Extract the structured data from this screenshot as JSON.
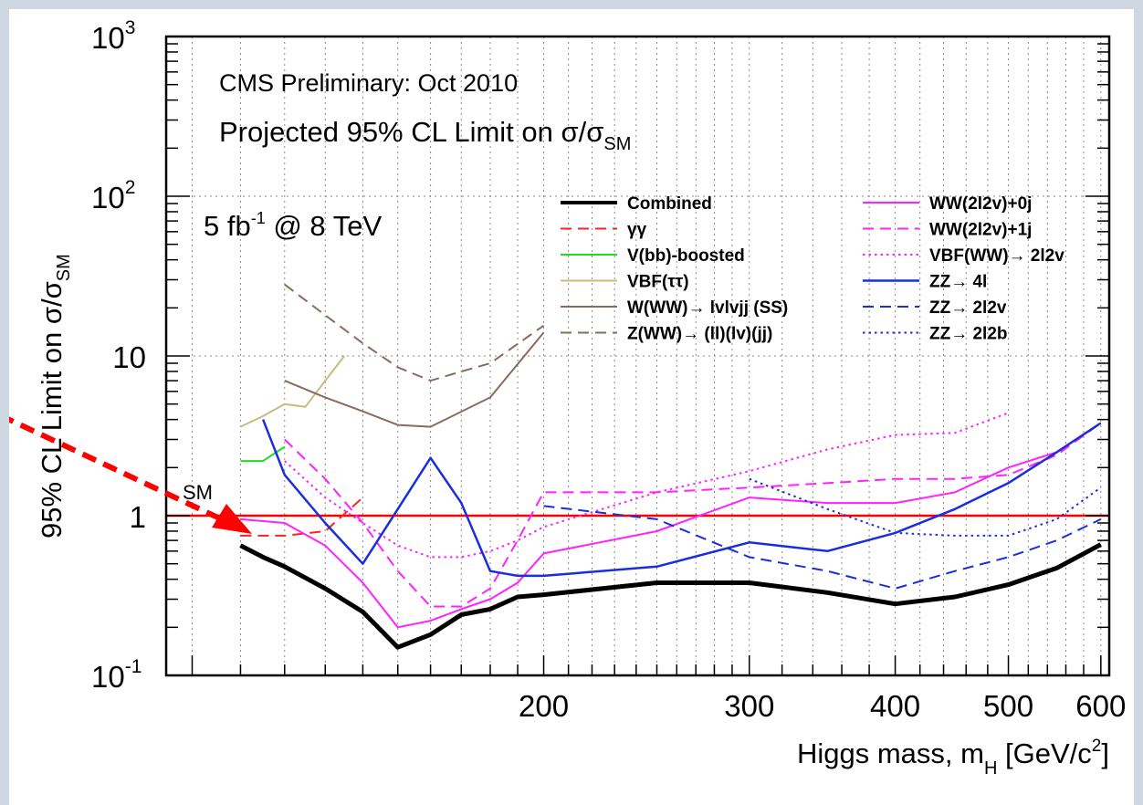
{
  "chart_data": {
    "type": "line",
    "title": "CMS Preliminary: Oct 2010",
    "subtitle": {
      "main": "Projected 95% CL Limit on ",
      "sym": "σ/σ",
      "sub": "SM"
    },
    "luminosity": {
      "pre": "5 fb",
      "sup": "-1",
      "post": " @ 8 TeV"
    },
    "xlabel": {
      "main": "Higgs mass, m",
      "sub": "H",
      "unit_pre": " [GeV/c",
      "unit_sup": "2",
      "unit_post": "]"
    },
    "ylabel": {
      "main": "95% CL Limit on ",
      "sym": "σ/σ",
      "sub": "SM"
    },
    "x_scale": "log",
    "y_scale": "log",
    "xlim": [
      95,
      610
    ],
    "ylim": [
      0.1,
      1000
    ],
    "x_ticks": [
      {
        "value": 200,
        "label": "200"
      },
      {
        "value": 300,
        "label": "300"
      },
      {
        "value": 400,
        "label": "400"
      },
      {
        "value": 500,
        "label": "500"
      },
      {
        "value": 600,
        "label": "600"
      }
    ],
    "y_ticks": [
      {
        "value": 0.1,
        "base": "10",
        "exp": "-1"
      },
      {
        "value": 1,
        "base": "1",
        "exp": ""
      },
      {
        "value": 10,
        "base": "10",
        "exp": ""
      },
      {
        "value": 100,
        "base": "10",
        "exp": "2"
      },
      {
        "value": 1000,
        "base": "10",
        "exp": "3"
      }
    ],
    "x_minor_ticks": [
      100,
      110,
      120,
      130,
      140,
      150,
      160,
      170,
      180,
      190,
      200,
      210,
      220,
      230,
      240,
      250,
      260,
      270,
      280,
      290,
      300,
      320,
      340,
      360,
      380,
      400,
      420,
      440,
      460,
      480,
      500,
      520,
      540,
      560,
      580,
      600
    ],
    "grid": true,
    "reference_line": {
      "y": 1,
      "label": "SM",
      "color": "#ff0000"
    },
    "legend_position": "top-right",
    "series": [
      {
        "name": "Combined",
        "color": "#000000",
        "dash": "solid",
        "width": 5,
        "x": [
          110,
          115,
          120,
          130,
          140,
          150,
          160,
          170,
          180,
          190,
          200,
          250,
          300,
          350,
          400,
          450,
          500,
          550,
          600
        ],
        "y": [
          0.65,
          0.55,
          0.48,
          0.35,
          0.25,
          0.15,
          0.18,
          0.24,
          0.26,
          0.31,
          0.32,
          0.38,
          0.38,
          0.33,
          0.28,
          0.31,
          0.37,
          0.47,
          0.66
        ]
      },
      {
        "name": "γγ",
        "color": "#ff2020",
        "dash": "dash",
        "width": 2,
        "x": [
          110,
          120,
          130,
          140
        ],
        "y": [
          0.75,
          0.75,
          0.8,
          1.3
        ]
      },
      {
        "name": "V(bb)-boosted",
        "color": "#22dd22",
        "dash": "solid",
        "width": 2,
        "x": [
          110,
          115,
          120
        ],
        "y": [
          2.2,
          2.2,
          2.7
        ]
      },
      {
        "name": "VBF(ττ)",
        "color": "#c8bb80",
        "dash": "solid",
        "width": 2,
        "x": [
          110,
          115,
          120,
          125,
          130,
          135
        ],
        "y": [
          3.6,
          4.2,
          5.0,
          4.8,
          7.0,
          10.0
        ]
      },
      {
        "name": "W(WW)→ lvlvjj (SS)",
        "color": "#8b6a5e",
        "dash": "solid",
        "width": 2,
        "x": [
          120,
          130,
          140,
          150,
          160,
          180,
          200
        ],
        "y": [
          7.0,
          5.5,
          4.5,
          3.7,
          3.6,
          5.5,
          14.0
        ]
      },
      {
        "name": "Z(WW)→ (ll)(lv)(jj)",
        "color": "#8b6a5e",
        "dash": "dash",
        "width": 2,
        "x": [
          120,
          130,
          140,
          150,
          160,
          170,
          180,
          200
        ],
        "y": [
          28,
          18,
          12,
          8.5,
          7.0,
          8.0,
          9.0,
          15.5
        ]
      },
      {
        "name": "WW(2l2v)+0j",
        "color": "#ff22ff",
        "dash": "solid",
        "width": 2,
        "x": [
          110,
          120,
          130,
          140,
          150,
          160,
          170,
          180,
          190,
          200,
          250,
          300,
          350,
          400,
          450,
          500,
          550,
          600
        ],
        "y": [
          0.95,
          0.9,
          0.65,
          0.38,
          0.2,
          0.22,
          0.26,
          0.3,
          0.38,
          0.58,
          0.8,
          1.3,
          1.2,
          1.2,
          1.4,
          2.0,
          2.5,
          3.8
        ]
      },
      {
        "name": "WW(2l2v)+1j",
        "color": "#ff22ff",
        "dash": "dash",
        "width": 2,
        "x": [
          120,
          130,
          140,
          150,
          160,
          170,
          180,
          190,
          200,
          250,
          300,
          350,
          400,
          450,
          500,
          550,
          600
        ],
        "y": [
          3.0,
          1.7,
          0.9,
          0.45,
          0.27,
          0.27,
          0.35,
          0.7,
          1.4,
          1.4,
          1.5,
          1.6,
          1.7,
          1.7,
          1.8,
          2.4,
          3.8
        ]
      },
      {
        "name": "VBF(WW)→ 2l2v",
        "color": "#ff22ff",
        "dash": "dot",
        "width": 2,
        "x": [
          120,
          130,
          140,
          150,
          160,
          170,
          180,
          190,
          200,
          250,
          300,
          350,
          400,
          450,
          500
        ],
        "y": [
          2.2,
          1.3,
          0.9,
          0.65,
          0.55,
          0.55,
          0.6,
          0.7,
          0.85,
          1.4,
          1.9,
          2.6,
          3.2,
          3.3,
          4.4
        ]
      },
      {
        "name": "ZZ→ 4l",
        "color": "#1a2edd",
        "dash": "solid",
        "width": 2.5,
        "x": [
          115,
          120,
          130,
          140,
          150,
          160,
          170,
          180,
          190,
          200,
          250,
          300,
          350,
          400,
          450,
          500,
          550,
          600
        ],
        "y": [
          4.0,
          1.8,
          0.9,
          0.5,
          1.1,
          2.3,
          1.2,
          0.45,
          0.42,
          0.42,
          0.48,
          0.68,
          0.6,
          0.78,
          1.1,
          1.6,
          2.5,
          3.8
        ]
      },
      {
        "name": "ZZ→ 2l2v",
        "color": "#1a2edd",
        "dash": "dash",
        "width": 2,
        "x": [
          200,
          250,
          300,
          350,
          400,
          450,
          500,
          550,
          600
        ],
        "y": [
          1.15,
          0.95,
          0.55,
          0.45,
          0.35,
          0.45,
          0.55,
          0.7,
          0.95
        ]
      },
      {
        "name": "ZZ→ 2l2b",
        "color": "#1a2edd",
        "dash": "dot",
        "width": 2,
        "x": [
          300,
          350,
          400,
          450,
          500,
          550,
          600
        ],
        "y": [
          1.7,
          1.1,
          0.78,
          0.75,
          0.75,
          0.95,
          1.5
        ]
      }
    ]
  }
}
